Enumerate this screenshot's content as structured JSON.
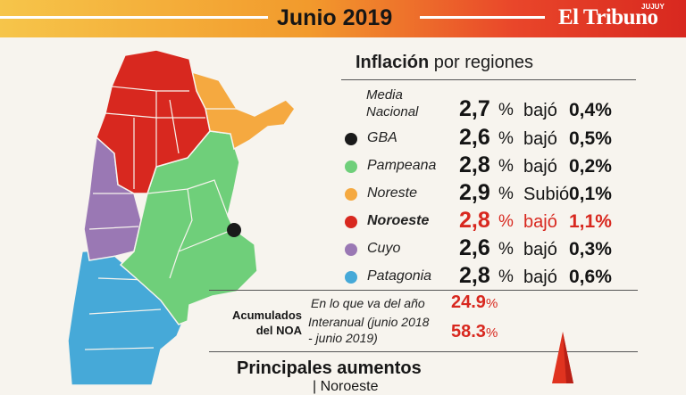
{
  "header": {
    "title": "Junio 2019",
    "brand": "El Tribuno",
    "brand_small": "JUJUY"
  },
  "subtitle": {
    "bold": "Inflación",
    "rest": " por regiones"
  },
  "regions": [
    {
      "name": "Media Nacional",
      "value": "2,7",
      "pct": "%",
      "change_word": "bajó",
      "change": "0,4%",
      "dot_color": "",
      "highlight": false
    },
    {
      "name": "GBA",
      "value": "2,6",
      "pct": "%",
      "change_word": "bajó",
      "change": "0,5%",
      "dot_color": "#1a1a1a",
      "highlight": false
    },
    {
      "name": "Pampeana",
      "value": "2,8",
      "pct": "%",
      "change_word": "bajó",
      "change": "0,2%",
      "dot_color": "#6fcf7a",
      "highlight": false
    },
    {
      "name": "Noreste",
      "value": "2,9",
      "pct": "%",
      "change_word": "Subió",
      "change": "0,1%",
      "dot_color": "#f5a940",
      "highlight": false
    },
    {
      "name": "Noroeste",
      "value": "2,8",
      "pct": "%",
      "change_word": "bajó",
      "change": "1,1%",
      "dot_color": "#d8281f",
      "highlight": true
    },
    {
      "name": "Cuyo",
      "value": "2,6",
      "pct": "%",
      "change_word": "bajó",
      "change": "0,3%",
      "dot_color": "#9a78b4",
      "highlight": false
    },
    {
      "name": "Patagonia",
      "value": "2,8",
      "pct": "%",
      "change_word": "bajó",
      "change": "0,6%",
      "dot_color": "#46a9d8",
      "highlight": false
    }
  ],
  "media_name_lines": [
    "Media",
    "Nacional"
  ],
  "accumulated": {
    "label_line1": "Acumulados",
    "label_line2": "del NOA",
    "year_label": "En lo que va del año",
    "year_value": "24.9",
    "year_pct": "%",
    "interannual_line1": "Interanual (junio 2018",
    "interannual_line2": "- junio 2019)",
    "interannual_value": "58.3",
    "interannual_pct": "%"
  },
  "increases": {
    "title": "Principales aumentos",
    "next": "| Noroeste"
  },
  "colors": {
    "noa": "#d8281f",
    "noreste": "#f5a940",
    "pampeana": "#6fcf7a",
    "cuyo": "#9a78b4",
    "patagonia": "#46a9d8",
    "gba": "#1a1a1a"
  }
}
